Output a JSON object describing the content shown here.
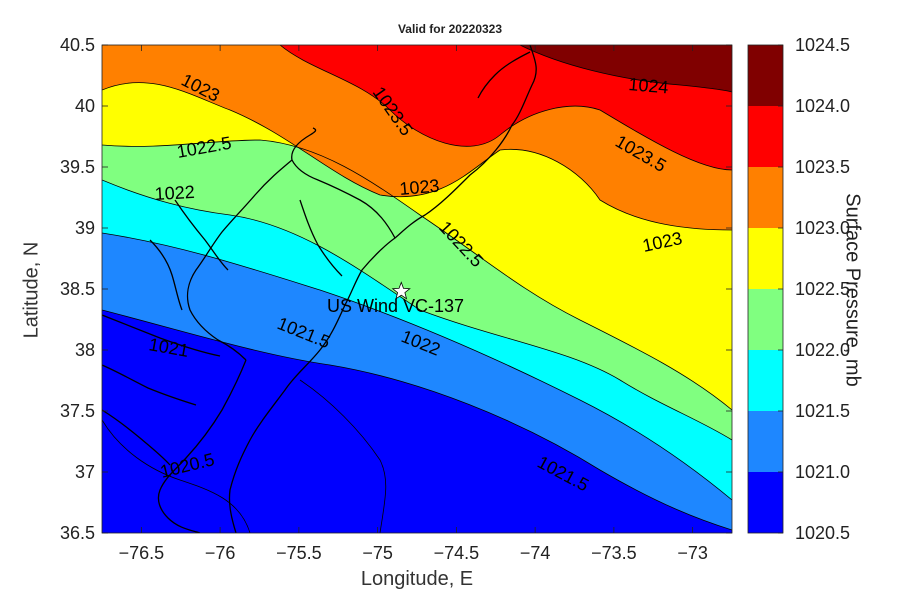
{
  "title": "Valid for 20220323",
  "xlabel": "Longitude, E",
  "ylabel": "Latitude, N",
  "colorbar": {
    "label": "Surface Pressure, mb",
    "ticks": [
      "1020.5",
      "1021.0",
      "1021.5",
      "1022.0",
      "1022.5",
      "1023.0",
      "1023.5",
      "1024.0",
      "1024.5"
    ],
    "colors": [
      "#0000ff",
      "#1e87ff",
      "#00ffff",
      "#80ff80",
      "#ffff00",
      "#ff8000",
      "#ff0000",
      "#800000"
    ]
  },
  "site": {
    "name": "US Wind VC-137",
    "lon": -74.85,
    "lat": 38.48
  },
  "contour_labels": [
    "1020.5",
    "1021",
    "1021.5",
    "1022",
    "1022.5",
    "1023",
    "1023.5",
    "1024"
  ],
  "chart_data": {
    "type": "heatmap",
    "title": "Valid for 20220323",
    "xlabel": "Longitude, E",
    "ylabel": "Latitude, N",
    "xlim": [
      -76.75,
      -72.75
    ],
    "ylim": [
      36.5,
      40.5
    ],
    "x_ticks": [
      "-76.5",
      "-76",
      "-75.5",
      "-75",
      "-74.5",
      "-74",
      "-73.5",
      "-73"
    ],
    "y_ticks": [
      "36.5",
      "37",
      "37.5",
      "38",
      "38.5",
      "39",
      "39.5",
      "40",
      "40.5"
    ],
    "color_scale": [
      1020.5,
      1024.5
    ],
    "contour_levels": [
      1020.5,
      1021,
      1021.5,
      1022,
      1022.5,
      1023,
      1023.5,
      1024
    ],
    "pressure_gradient": "increasing from southwest (about 1020.5 mb) to northeast (about 1024.3 mb)",
    "marker": {
      "label": "US Wind VC-137",
      "lon": -74.85,
      "lat": 38.48
    }
  }
}
